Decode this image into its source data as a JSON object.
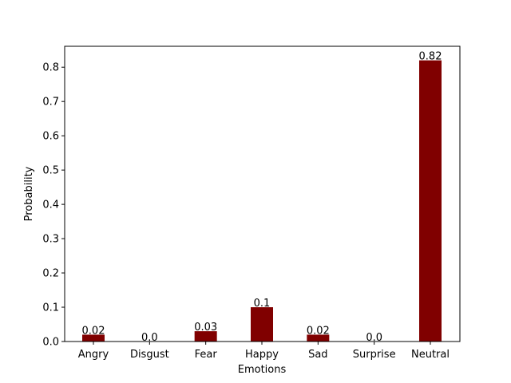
{
  "chart_data": {
    "type": "bar",
    "title": "",
    "xlabel": "Emotions",
    "ylabel": "Probability",
    "categories": [
      "Angry",
      "Disgust",
      "Fear",
      "Happy",
      "Sad",
      "Surprise",
      "Neutral"
    ],
    "values": [
      0.02,
      0.0,
      0.03,
      0.1,
      0.02,
      0.0,
      0.82
    ],
    "value_labels": [
      "0.02",
      "0.0",
      "0.03",
      "0.1",
      "0.02",
      "0.0",
      "0.82"
    ],
    "ylim": [
      0,
      0.861
    ],
    "yticks": [
      0.0,
      0.1,
      0.2,
      0.3,
      0.4,
      0.5,
      0.6,
      0.7,
      0.8
    ],
    "ytick_labels": [
      "0.0",
      "0.1",
      "0.2",
      "0.3",
      "0.4",
      "0.5",
      "0.6",
      "0.7",
      "0.8"
    ],
    "bar_color": "#800000",
    "grid": false,
    "legend": "none"
  }
}
